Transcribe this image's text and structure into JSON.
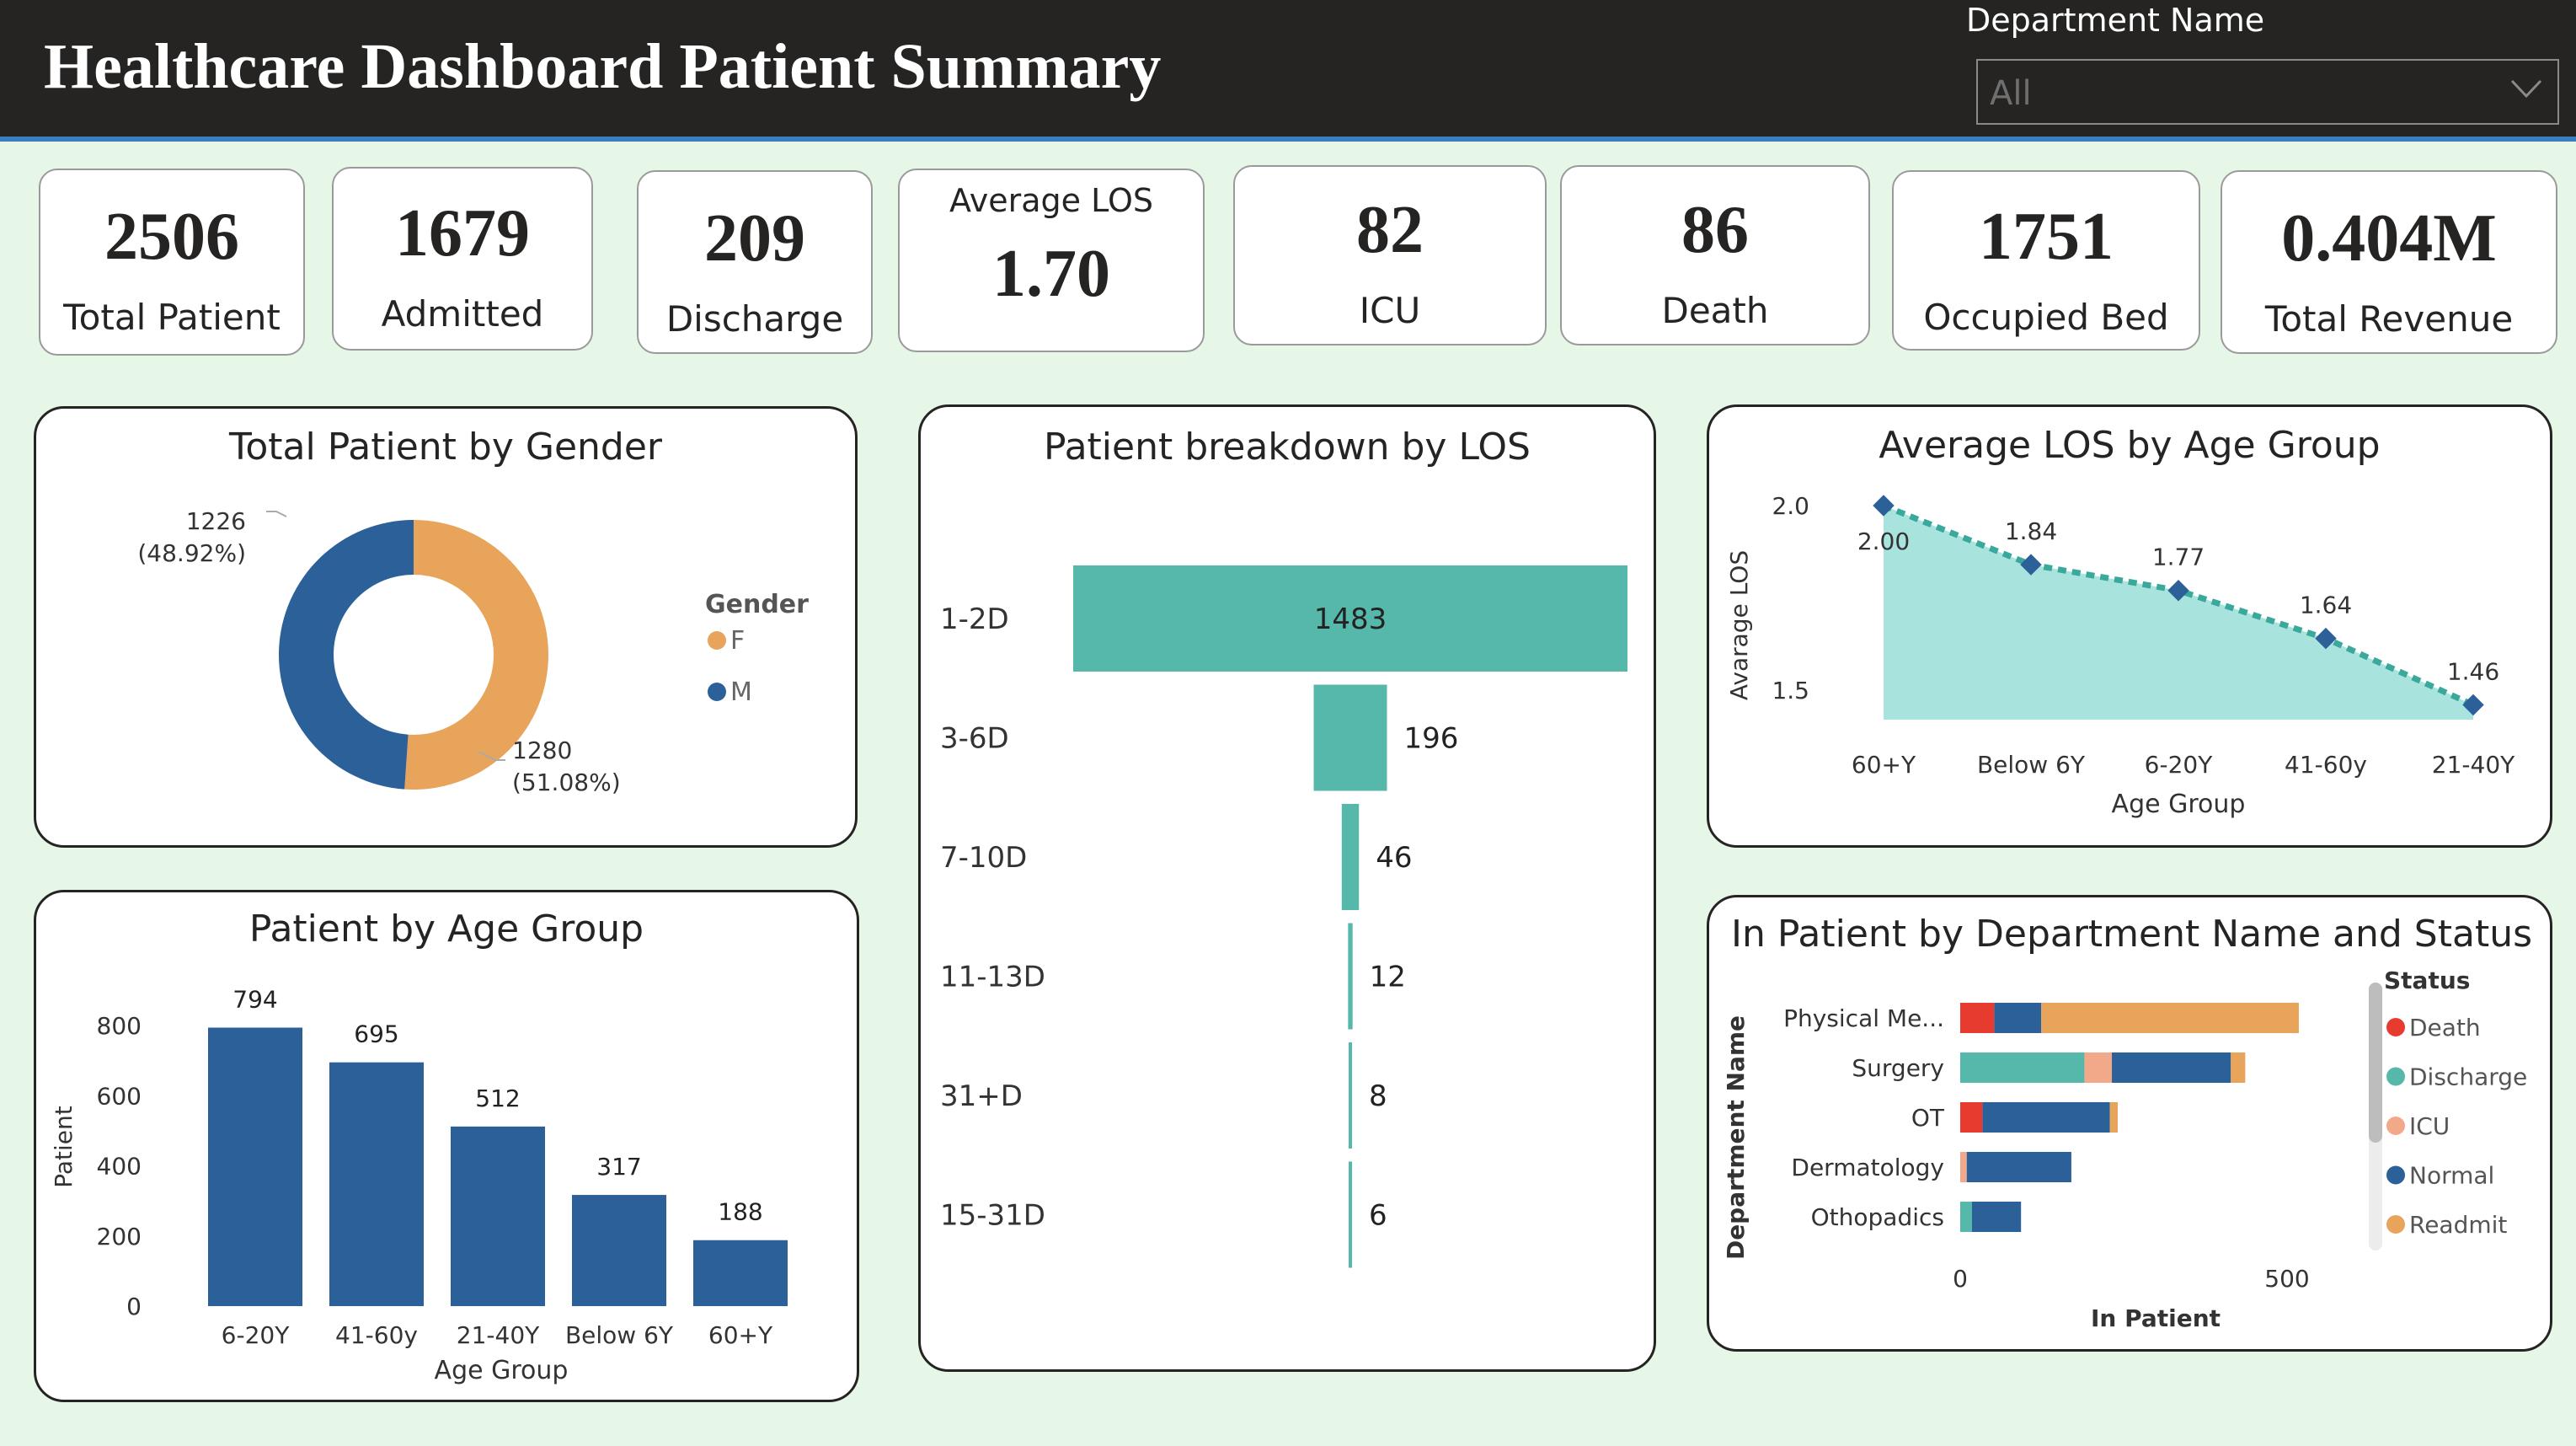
{
  "header": {
    "title": "Healthcare Dashboard Patient Summary",
    "slicer_label": "Department Name",
    "slicer_value": "All"
  },
  "kpis": [
    {
      "value": "2506",
      "label": "Total Patient"
    },
    {
      "value": "1679",
      "label": "Admitted"
    },
    {
      "value": "209",
      "label": "Discharge"
    },
    {
      "value": "1.70",
      "label": "Average LOS"
    },
    {
      "value": "82",
      "label": "ICU"
    },
    {
      "value": "86",
      "label": "Death"
    },
    {
      "value": "1751",
      "label": "Occupied Bed"
    },
    {
      "value": "0.404M",
      "label": "Total Revenue"
    }
  ],
  "colors": {
    "female": "#e8a45a",
    "male": "#2c6099",
    "teal": "#55b8aa",
    "area": "#a9e3de",
    "marker": "#2c6099",
    "death": "#e83b30",
    "discharge": "#55b8aa",
    "icu": "#f2a98a",
    "normal": "#2c6099",
    "readmit": "#e8a45a"
  },
  "chart_data": [
    {
      "type": "pie",
      "title": "Total Patient by Gender",
      "legend_title": "Gender",
      "legend_position": "right",
      "slices": [
        {
          "name": "F",
          "value": 1280,
          "label": "1280",
          "pct": "(51.08%)"
        },
        {
          "name": "M",
          "value": 1226,
          "label": "1226",
          "pct": "(48.92%)"
        }
      ]
    },
    {
      "type": "bar",
      "title": "Patient breakdown by LOS",
      "orientation": "funnel",
      "categories": [
        "1-2D",
        "3-6D",
        "7-10D",
        "11-13D",
        "31+D",
        "15-31D"
      ],
      "values": [
        1483,
        196,
        46,
        12,
        8,
        6
      ]
    },
    {
      "type": "area",
      "title": "Average LOS by Age Group",
      "xlabel": "Age Group",
      "ylabel": "Avarage LOS",
      "categories": [
        "60+Y",
        "Below 6Y",
        "6-20Y",
        "41-60y",
        "21-40Y"
      ],
      "values": [
        2.0,
        1.84,
        1.77,
        1.64,
        1.46
      ],
      "value_labels": [
        "2.00",
        "1.84",
        "1.77",
        "1.64",
        "1.46"
      ],
      "ylim": [
        1.42,
        2.0
      ],
      "yticks": [
        "2.0",
        "1.5"
      ],
      "ytick_values": [
        2.0,
        1.5
      ]
    },
    {
      "type": "bar",
      "title": "Patient by Age Group",
      "xlabel": "Age Group",
      "ylabel": "Patient",
      "categories": [
        "6-20Y",
        "41-60y",
        "21-40Y",
        "Below 6Y",
        "60+Y"
      ],
      "values": [
        794,
        695,
        512,
        317,
        188
      ],
      "ylim": [
        0,
        800
      ],
      "yticks": [
        0,
        200,
        400,
        600,
        800
      ]
    },
    {
      "type": "bar",
      "title": "In Patient by Department Name and Status",
      "orientation": "horizontal-stacked",
      "xlabel": "In Patient",
      "ylabel": "Department Name",
      "legend_title": "Status",
      "legend_position": "right",
      "categories": [
        "Physical Me...",
        "Surgery",
        "OT",
        "Dermatology",
        "Othopadics"
      ],
      "series": [
        {
          "name": "Death",
          "values": [
            52,
            0,
            34,
            0,
            0
          ]
        },
        {
          "name": "Discharge",
          "values": [
            0,
            190,
            0,
            0,
            18
          ]
        },
        {
          "name": "ICU",
          "values": [
            0,
            42,
            0,
            10,
            0
          ]
        },
        {
          "name": "Normal",
          "values": [
            72,
            182,
            195,
            160,
            75
          ]
        },
        {
          "name": "Readmit",
          "values": [
            394,
            22,
            12,
            0,
            0
          ]
        }
      ],
      "xticks": [
        0,
        500
      ],
      "xlim": [
        0,
        500
      ]
    }
  ]
}
